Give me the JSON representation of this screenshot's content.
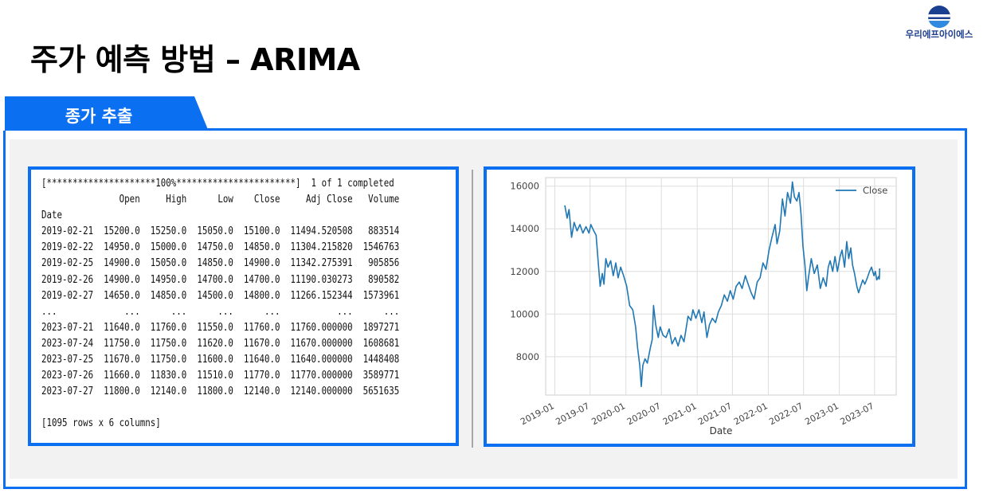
{
  "header": {
    "title": "주가 예측 방법 – ARIMA",
    "logo_text": "우리에프아이에스"
  },
  "section_tab": {
    "label": "종가 추출"
  },
  "output": {
    "progress_line": "[*********************100%***********************]  1 of 1 completed",
    "columns": [
      "Open",
      "High",
      "Low",
      "Close",
      "Adj Close",
      "Volume"
    ],
    "index_name": "Date",
    "rows_head": [
      [
        "2019-02-21",
        "15200.0",
        "15250.0",
        "15050.0",
        "15100.0",
        "11494.520508",
        "883514"
      ],
      [
        "2019-02-22",
        "14950.0",
        "15000.0",
        "14750.0",
        "14850.0",
        "11304.215820",
        "1546763"
      ],
      [
        "2019-02-25",
        "14900.0",
        "15050.0",
        "14850.0",
        "14900.0",
        "11342.275391",
        "905856"
      ],
      [
        "2019-02-26",
        "14900.0",
        "14950.0",
        "14700.0",
        "14700.0",
        "11190.030273",
        "890582"
      ],
      [
        "2019-02-27",
        "14650.0",
        "14850.0",
        "14500.0",
        "14800.0",
        "11266.152344",
        "1573961"
      ]
    ],
    "ellipsis": "...",
    "rows_tail": [
      [
        "2023-07-21",
        "11640.0",
        "11760.0",
        "11550.0",
        "11760.0",
        "11760.000000",
        "1897271"
      ],
      [
        "2023-07-24",
        "11750.0",
        "11750.0",
        "11620.0",
        "11670.0",
        "11670.000000",
        "1608681"
      ],
      [
        "2023-07-25",
        "11670.0",
        "11750.0",
        "11600.0",
        "11640.0",
        "11640.000000",
        "1448408"
      ],
      [
        "2023-07-26",
        "11660.0",
        "11830.0",
        "11510.0",
        "11770.0",
        "11770.000000",
        "3589771"
      ],
      [
        "2023-07-27",
        "11800.0",
        "12140.0",
        "11800.0",
        "12140.0",
        "12140.000000",
        "5651635"
      ]
    ],
    "shape_line": "[1095 rows x 6 columns]"
  },
  "colors": {
    "accent": "#0a6ff0",
    "line": "#1f77b4",
    "panel_bg": "#f2f2f2"
  },
  "chart_data": {
    "type": "line",
    "title": "",
    "xlabel": "Date",
    "ylabel": "",
    "ylim": [
      6200,
      16400
    ],
    "yticks": [
      8000,
      10000,
      12000,
      14000,
      16000
    ],
    "xlim": [
      "2018-11-15",
      "2023-10-20"
    ],
    "xticks": [
      "2019-01",
      "2019-07",
      "2020-01",
      "2020-07",
      "2021-01",
      "2021-07",
      "2022-01",
      "2022-07",
      "2023-01",
      "2023-07"
    ],
    "grid": true,
    "legend_position": "top-right",
    "series": [
      {
        "name": "Close",
        "points": [
          [
            "2019-02-21",
            15100
          ],
          [
            "2019-03-05",
            14500
          ],
          [
            "2019-03-15",
            14900
          ],
          [
            "2019-03-28",
            13600
          ],
          [
            "2019-04-10",
            14300
          ],
          [
            "2019-04-25",
            13900
          ],
          [
            "2019-05-10",
            14200
          ],
          [
            "2019-05-25",
            13800
          ],
          [
            "2019-06-10",
            14100
          ],
          [
            "2019-06-25",
            13800
          ],
          [
            "2019-07-05",
            14200
          ],
          [
            "2019-07-20",
            13900
          ],
          [
            "2019-08-01",
            13700
          ],
          [
            "2019-08-12",
            12400
          ],
          [
            "2019-08-22",
            11300
          ],
          [
            "2019-09-02",
            11900
          ],
          [
            "2019-09-10",
            11400
          ],
          [
            "2019-09-20",
            12600
          ],
          [
            "2019-10-01",
            12200
          ],
          [
            "2019-10-15",
            12500
          ],
          [
            "2019-10-28",
            11800
          ],
          [
            "2019-11-10",
            12400
          ],
          [
            "2019-11-22",
            11700
          ],
          [
            "2019-12-05",
            12200
          ],
          [
            "2019-12-20",
            11800
          ],
          [
            "2020-01-05",
            11300
          ],
          [
            "2020-01-20",
            10400
          ],
          [
            "2020-02-05",
            10200
          ],
          [
            "2020-02-20",
            9400
          ],
          [
            "2020-03-01",
            8400
          ],
          [
            "2020-03-12",
            7600
          ],
          [
            "2020-03-20",
            6600
          ],
          [
            "2020-03-28",
            7600
          ],
          [
            "2020-04-08",
            7900
          ],
          [
            "2020-04-20",
            7700
          ],
          [
            "2020-05-05",
            8400
          ],
          [
            "2020-05-15",
            8800
          ],
          [
            "2020-05-22",
            10400
          ],
          [
            "2020-06-02",
            9500
          ],
          [
            "2020-06-15",
            8900
          ],
          [
            "2020-06-25",
            9400
          ],
          [
            "2020-07-10",
            9000
          ],
          [
            "2020-07-25",
            8900
          ],
          [
            "2020-08-10",
            9300
          ],
          [
            "2020-08-25",
            8600
          ],
          [
            "2020-09-10",
            8900
          ],
          [
            "2020-09-25",
            8500
          ],
          [
            "2020-10-10",
            9000
          ],
          [
            "2020-10-25",
            8700
          ],
          [
            "2020-11-05",
            9300
          ],
          [
            "2020-11-15",
            9900
          ],
          [
            "2020-11-30",
            9700
          ],
          [
            "2020-12-10",
            10200
          ],
          [
            "2020-12-25",
            9800
          ],
          [
            "2021-01-10",
            10200
          ],
          [
            "2021-01-25",
            9600
          ],
          [
            "2021-02-05",
            10100
          ],
          [
            "2021-02-20",
            8900
          ],
          [
            "2021-03-05",
            9500
          ],
          [
            "2021-03-20",
            9800
          ],
          [
            "2021-04-05",
            9600
          ],
          [
            "2021-04-20",
            10100
          ],
          [
            "2021-05-05",
            10400
          ],
          [
            "2021-05-20",
            10900
          ],
          [
            "2021-06-05",
            10600
          ],
          [
            "2021-06-20",
            11100
          ],
          [
            "2021-07-05",
            10700
          ],
          [
            "2021-07-20",
            11300
          ],
          [
            "2021-08-05",
            11500
          ],
          [
            "2021-08-20",
            11200
          ],
          [
            "2021-09-05",
            11800
          ],
          [
            "2021-09-20",
            11400
          ],
          [
            "2021-10-05",
            11000
          ],
          [
            "2021-10-20",
            10700
          ],
          [
            "2021-11-05",
            11500
          ],
          [
            "2021-11-20",
            11700
          ],
          [
            "2021-12-05",
            12400
          ],
          [
            "2021-12-20",
            12100
          ],
          [
            "2022-01-05",
            13000
          ],
          [
            "2022-01-20",
            13600
          ],
          [
            "2022-02-05",
            14200
          ],
          [
            "2022-02-15",
            13300
          ],
          [
            "2022-03-01",
            13900
          ],
          [
            "2022-03-15",
            15400
          ],
          [
            "2022-03-28",
            14600
          ],
          [
            "2022-04-10",
            15700
          ],
          [
            "2022-04-25",
            15200
          ],
          [
            "2022-05-05",
            16200
          ],
          [
            "2022-05-15",
            15500
          ],
          [
            "2022-05-28",
            15300
          ],
          [
            "2022-06-08",
            15700
          ],
          [
            "2022-06-18",
            14700
          ],
          [
            "2022-06-28",
            13200
          ],
          [
            "2022-07-08",
            12300
          ],
          [
            "2022-07-18",
            11100
          ],
          [
            "2022-07-28",
            11800
          ],
          [
            "2022-08-10",
            12600
          ],
          [
            "2022-08-25",
            11900
          ],
          [
            "2022-09-10",
            12300
          ],
          [
            "2022-09-25",
            11200
          ],
          [
            "2022-10-10",
            11700
          ],
          [
            "2022-10-25",
            11300
          ],
          [
            "2022-11-05",
            12200
          ],
          [
            "2022-11-15",
            12500
          ],
          [
            "2022-11-28",
            12000
          ],
          [
            "2022-12-10",
            12700
          ],
          [
            "2022-12-22",
            12000
          ],
          [
            "2023-01-05",
            12700
          ],
          [
            "2023-01-15",
            13000
          ],
          [
            "2023-01-28",
            12200
          ],
          [
            "2023-02-08",
            13400
          ],
          [
            "2023-02-18",
            12600
          ],
          [
            "2023-03-01",
            13100
          ],
          [
            "2023-03-10",
            12300
          ],
          [
            "2023-03-20",
            11900
          ],
          [
            "2023-04-01",
            11300
          ],
          [
            "2023-04-10",
            11000
          ],
          [
            "2023-04-20",
            11300
          ],
          [
            "2023-05-01",
            11600
          ],
          [
            "2023-05-12",
            11400
          ],
          [
            "2023-05-25",
            11700
          ],
          [
            "2023-06-05",
            12000
          ],
          [
            "2023-06-15",
            12200
          ],
          [
            "2023-06-28",
            11800
          ],
          [
            "2023-07-05",
            12000
          ],
          [
            "2023-07-12",
            11600
          ],
          [
            "2023-07-21",
            11760
          ],
          [
            "2023-07-24",
            11670
          ],
          [
            "2023-07-25",
            11640
          ],
          [
            "2023-07-26",
            11770
          ],
          [
            "2023-07-27",
            12140
          ]
        ]
      }
    ]
  }
}
